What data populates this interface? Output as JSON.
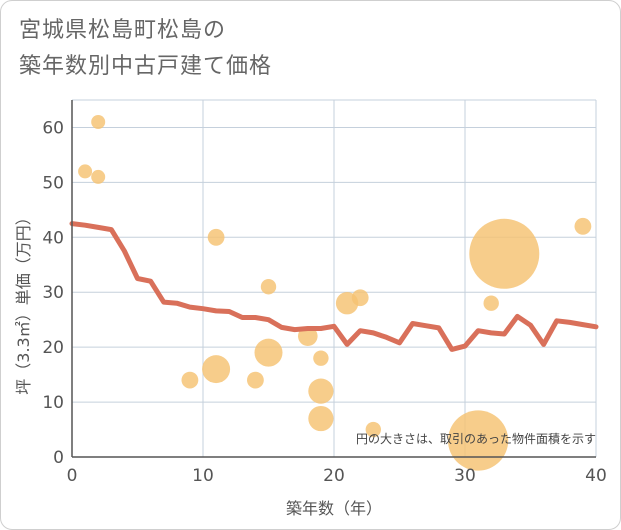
{
  "chart_data": {
    "type": "scatter",
    "title": [
      "宮城県松島町松島の",
      "築年数別中古戸建て価格"
    ],
    "xlabel": "築年数（年）",
    "ylabel": "坪（3.3㎡）単価（万円）",
    "note": "円の大きさは、取引のあった物件面積を示す",
    "xlim": [
      0,
      40
    ],
    "ylim": [
      0,
      65
    ],
    "xticks": [
      0,
      10,
      20,
      30,
      40
    ],
    "yticks": [
      0,
      10,
      20,
      30,
      40,
      50,
      60
    ],
    "grid": true,
    "colors": {
      "bubble": "#f5c271",
      "line": "#d9705a",
      "grid": "#c5d0dc",
      "axis": "#555555"
    },
    "bubbles": [
      {
        "x": 1,
        "y": 52,
        "size": 1
      },
      {
        "x": 2,
        "y": 61,
        "size": 1
      },
      {
        "x": 2,
        "y": 51,
        "size": 1
      },
      {
        "x": 9,
        "y": 14,
        "size": 1.2
      },
      {
        "x": 11,
        "y": 40,
        "size": 1.2
      },
      {
        "x": 11,
        "y": 16,
        "size": 2
      },
      {
        "x": 14,
        "y": 14,
        "size": 1.2
      },
      {
        "x": 15,
        "y": 31,
        "size": 1.1
      },
      {
        "x": 15,
        "y": 19,
        "size": 2
      },
      {
        "x": 18,
        "y": 22,
        "size": 1.4
      },
      {
        "x": 19,
        "y": 18,
        "size": 1.1
      },
      {
        "x": 19,
        "y": 12,
        "size": 1.8
      },
      {
        "x": 19,
        "y": 7,
        "size": 1.8
      },
      {
        "x": 21,
        "y": 28,
        "size": 1.6
      },
      {
        "x": 22,
        "y": 29,
        "size": 1.2
      },
      {
        "x": 23,
        "y": 5,
        "size": 1.1
      },
      {
        "x": 31,
        "y": 3,
        "size": 4.3
      },
      {
        "x": 32,
        "y": 28,
        "size": 1.1
      },
      {
        "x": 33,
        "y": 37,
        "size": 5
      },
      {
        "x": 39,
        "y": 42,
        "size": 1.2
      }
    ],
    "trend": {
      "x": [
        0,
        1,
        2,
        3,
        4,
        5,
        6,
        7,
        8,
        9,
        10,
        11,
        12,
        13,
        14,
        15,
        16,
        17,
        18,
        19,
        20,
        21,
        22,
        23,
        24,
        25,
        26,
        27,
        28,
        29,
        30,
        31,
        32,
        33,
        34,
        35,
        36,
        37,
        38,
        39,
        40
      ],
      "y": [
        42.5,
        42.2,
        41.8,
        41.4,
        37.5,
        32.5,
        32.0,
        28.2,
        28.0,
        27.3,
        27.0,
        26.6,
        26.5,
        25.4,
        25.4,
        25.0,
        23.6,
        23.2,
        23.4,
        23.4,
        23.8,
        20.5,
        23.0,
        22.6,
        21.8,
        20.8,
        24.3,
        23.9,
        23.5,
        19.6,
        20.2,
        23.0,
        22.6,
        22.4,
        25.6,
        24.0,
        20.5,
        24.8,
        24.5,
        24.1,
        23.7
      ]
    }
  }
}
